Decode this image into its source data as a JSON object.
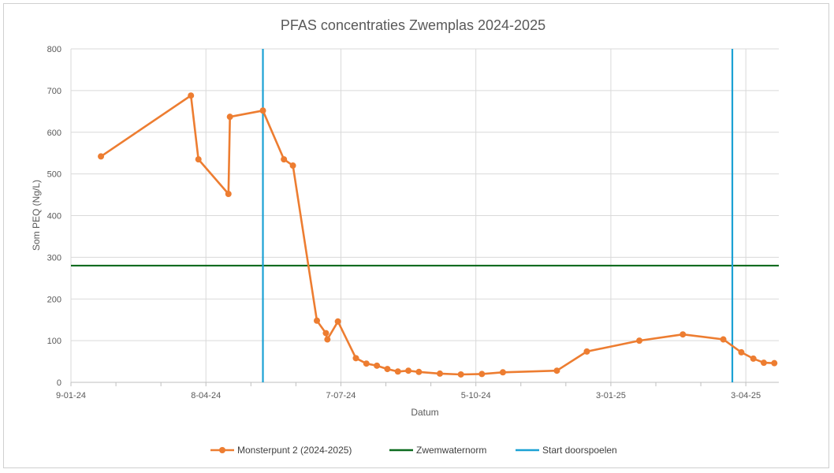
{
  "chart_data": {
    "type": "line",
    "title": "PFAS concentraties Zwemplas 2024-2025",
    "xlabel": "Datum",
    "ylabel": "Som PEQ (Ng/L)",
    "ylim": [
      0,
      800
    ],
    "yticks": [
      0,
      100,
      200,
      300,
      400,
      500,
      600,
      700,
      800
    ],
    "x_tick_labels": [
      "9-01-24",
      "8-04-24",
      "7-07-24",
      "5-10-24",
      "3-01-25",
      "3-04-25"
    ],
    "x_tick_days": [
      0,
      90,
      180,
      270,
      360,
      450
    ],
    "x_range_days": [
      0,
      472
    ],
    "series": [
      {
        "name": "Monsterpunt 2 (2024-2025)",
        "color": "#ed7d31",
        "points": [
          {
            "day": 20,
            "value": 542
          },
          {
            "day": 80,
            "value": 688
          },
          {
            "day": 85,
            "value": 535
          },
          {
            "day": 105,
            "value": 452
          },
          {
            "day": 106,
            "value": 637
          },
          {
            "day": 128,
            "value": 652
          },
          {
            "day": 142,
            "value": 535
          },
          {
            "day": 148,
            "value": 520
          },
          {
            "day": 164,
            "value": 148
          },
          {
            "day": 170,
            "value": 118
          },
          {
            "day": 171,
            "value": 103
          },
          {
            "day": 178,
            "value": 146
          },
          {
            "day": 190,
            "value": 58
          },
          {
            "day": 197,
            "value": 45
          },
          {
            "day": 204,
            "value": 40
          },
          {
            "day": 211,
            "value": 32
          },
          {
            "day": 218,
            "value": 26
          },
          {
            "day": 225,
            "value": 28
          },
          {
            "day": 232,
            "value": 25
          },
          {
            "day": 246,
            "value": 21
          },
          {
            "day": 260,
            "value": 19
          },
          {
            "day": 274,
            "value": 20
          },
          {
            "day": 288,
            "value": 24
          },
          {
            "day": 324,
            "value": 28
          },
          {
            "day": 344,
            "value": 74
          },
          {
            "day": 379,
            "value": 100
          },
          {
            "day": 408,
            "value": 115
          },
          {
            "day": 435,
            "value": 103
          },
          {
            "day": 447,
            "value": 72
          },
          {
            "day": 455,
            "value": 57
          },
          {
            "day": 462,
            "value": 47
          },
          {
            "day": 469,
            "value": 46
          }
        ]
      }
    ],
    "reference_lines": [
      {
        "name": "Zwemwaternorm",
        "orientation": "horizontal",
        "value": 280,
        "color": "#0b6b1f"
      }
    ],
    "vertical_markers": [
      {
        "name": "Start doorspoelen",
        "day": 128,
        "color": "#1ba1d4"
      },
      {
        "name": "Start doorspoelen",
        "day": 441,
        "color": "#1ba1d4"
      }
    ],
    "legend": [
      {
        "label": "Monsterpunt 2 (2024-2025)",
        "color": "#ed7d31",
        "kind": "line-marker"
      },
      {
        "label": "Zwemwaternorm",
        "color": "#0b6b1f",
        "kind": "line"
      },
      {
        "label": "Start doorspoelen",
        "color": "#1ba1d4",
        "kind": "line"
      }
    ],
    "legend_position": "bottom",
    "grid": true
  }
}
